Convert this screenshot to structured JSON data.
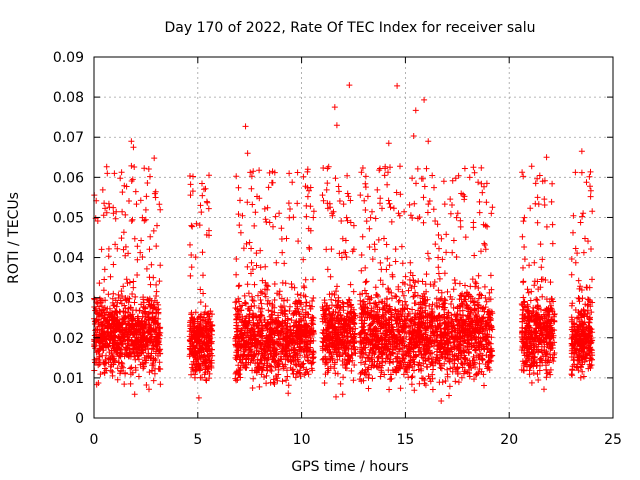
{
  "chart_data": {
    "type": "scatter",
    "title": "Day 170 of 2022, Rate Of TEC Index for receiver salu",
    "xlabel": "GPS time / hours",
    "ylabel": "ROTI / TECUs",
    "xlim": [
      0,
      25
    ],
    "ylim": [
      0,
      0.09
    ],
    "x_ticks": [
      0,
      5,
      10,
      15,
      20,
      25
    ],
    "x_tick_labels": [
      "0",
      "5",
      "10",
      "15",
      "20",
      "25"
    ],
    "y_ticks": [
      0,
      0.01,
      0.02,
      0.03,
      0.04,
      0.05,
      0.06,
      0.07,
      0.08,
      0.09
    ],
    "y_tick_labels": [
      "0",
      "0.01",
      "0.02",
      "0.03",
      "0.04",
      "0.05",
      "0.06",
      "0.07",
      "0.08",
      "0.09"
    ],
    "grid": true,
    "marker": "+",
    "color": "#ff0000",
    "description_of_density": "Dense clusters of ROTI values mostly between 0.01 and 0.035 TECU/min, with outliers up to ~0.083",
    "clusters": [
      {
        "x_range": [
          0.0,
          3.2
        ],
        "y_center": 0.021,
        "y_spread": 0.009,
        "density": 900
      },
      {
        "x_range": [
          4.6,
          5.7
        ],
        "y_center": 0.019,
        "y_spread": 0.008,
        "density": 350
      },
      {
        "x_range": [
          6.8,
          10.6
        ],
        "y_center": 0.02,
        "y_spread": 0.009,
        "density": 1000
      },
      {
        "x_range": [
          11.0,
          12.6
        ],
        "y_center": 0.021,
        "y_spread": 0.009,
        "density": 450
      },
      {
        "x_range": [
          12.8,
          19.2
        ],
        "y_center": 0.021,
        "y_spread": 0.01,
        "density": 1800
      },
      {
        "x_range": [
          20.6,
          22.2
        ],
        "y_center": 0.021,
        "y_spread": 0.009,
        "density": 450
      },
      {
        "x_range": [
          23.0,
          24.0
        ],
        "y_center": 0.02,
        "y_spread": 0.008,
        "density": 300
      }
    ],
    "outliers": [
      {
        "x": 12.3,
        "y": 0.083
      },
      {
        "x": 14.6,
        "y": 0.0828
      },
      {
        "x": 15.9,
        "y": 0.0793
      },
      {
        "x": 15.5,
        "y": 0.0767
      },
      {
        "x": 11.6,
        "y": 0.0775
      },
      {
        "x": 11.7,
        "y": 0.073
      },
      {
        "x": 7.3,
        "y": 0.0727
      },
      {
        "x": 15.4,
        "y": 0.0703
      },
      {
        "x": 1.8,
        "y": 0.069
      },
      {
        "x": 14.2,
        "y": 0.0685
      },
      {
        "x": 16.1,
        "y": 0.069
      },
      {
        "x": 1.9,
        "y": 0.0675
      },
      {
        "x": 23.5,
        "y": 0.0665
      },
      {
        "x": 7.4,
        "y": 0.066
      },
      {
        "x": 2.9,
        "y": 0.0648
      },
      {
        "x": 21.8,
        "y": 0.065
      },
      {
        "x": 10.3,
        "y": 0.062
      },
      {
        "x": 8.6,
        "y": 0.0615
      },
      {
        "x": 18.1,
        "y": 0.06
      },
      {
        "x": 14.0,
        "y": 0.0605
      },
      {
        "x": 11.8,
        "y": 0.0565
      },
      {
        "x": 9.4,
        "y": 0.061
      }
    ]
  }
}
